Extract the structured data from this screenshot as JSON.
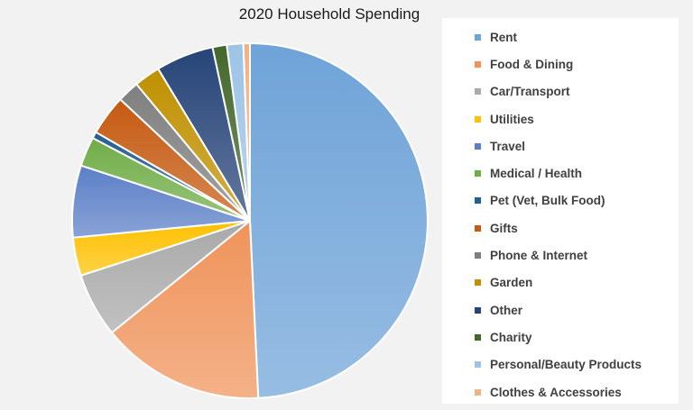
{
  "chart_data": {
    "type": "pie",
    "title": "2020 Household Spending",
    "legend_position": "right",
    "categories": [
      "Rent",
      "Food & Dining",
      "Car/Transport",
      "Utilities",
      "Travel",
      "Medical / Health",
      "Pet (Vet, Bulk Food)",
      "Gifts",
      "Phone & Internet",
      "Garden",
      "Other",
      "Charity",
      "Personal/Beauty Products",
      "Clothes & Accessories"
    ],
    "values": [
      49.6,
      15.0,
      5.9,
      3.5,
      6.6,
      2.7,
      0.6,
      3.7,
      2.0,
      2.4,
      5.3,
      1.3,
      1.5,
      0.6
    ],
    "colors": [
      "#6fa3d8",
      "#f0935a",
      "#a9a9a9",
      "#ffc000",
      "#5b7fc7",
      "#70ad47",
      "#255e91",
      "#c55a11",
      "#7f7f7f",
      "#bf9000",
      "#264478",
      "#43682b",
      "#9dc3e6",
      "#f4b183"
    ]
  }
}
